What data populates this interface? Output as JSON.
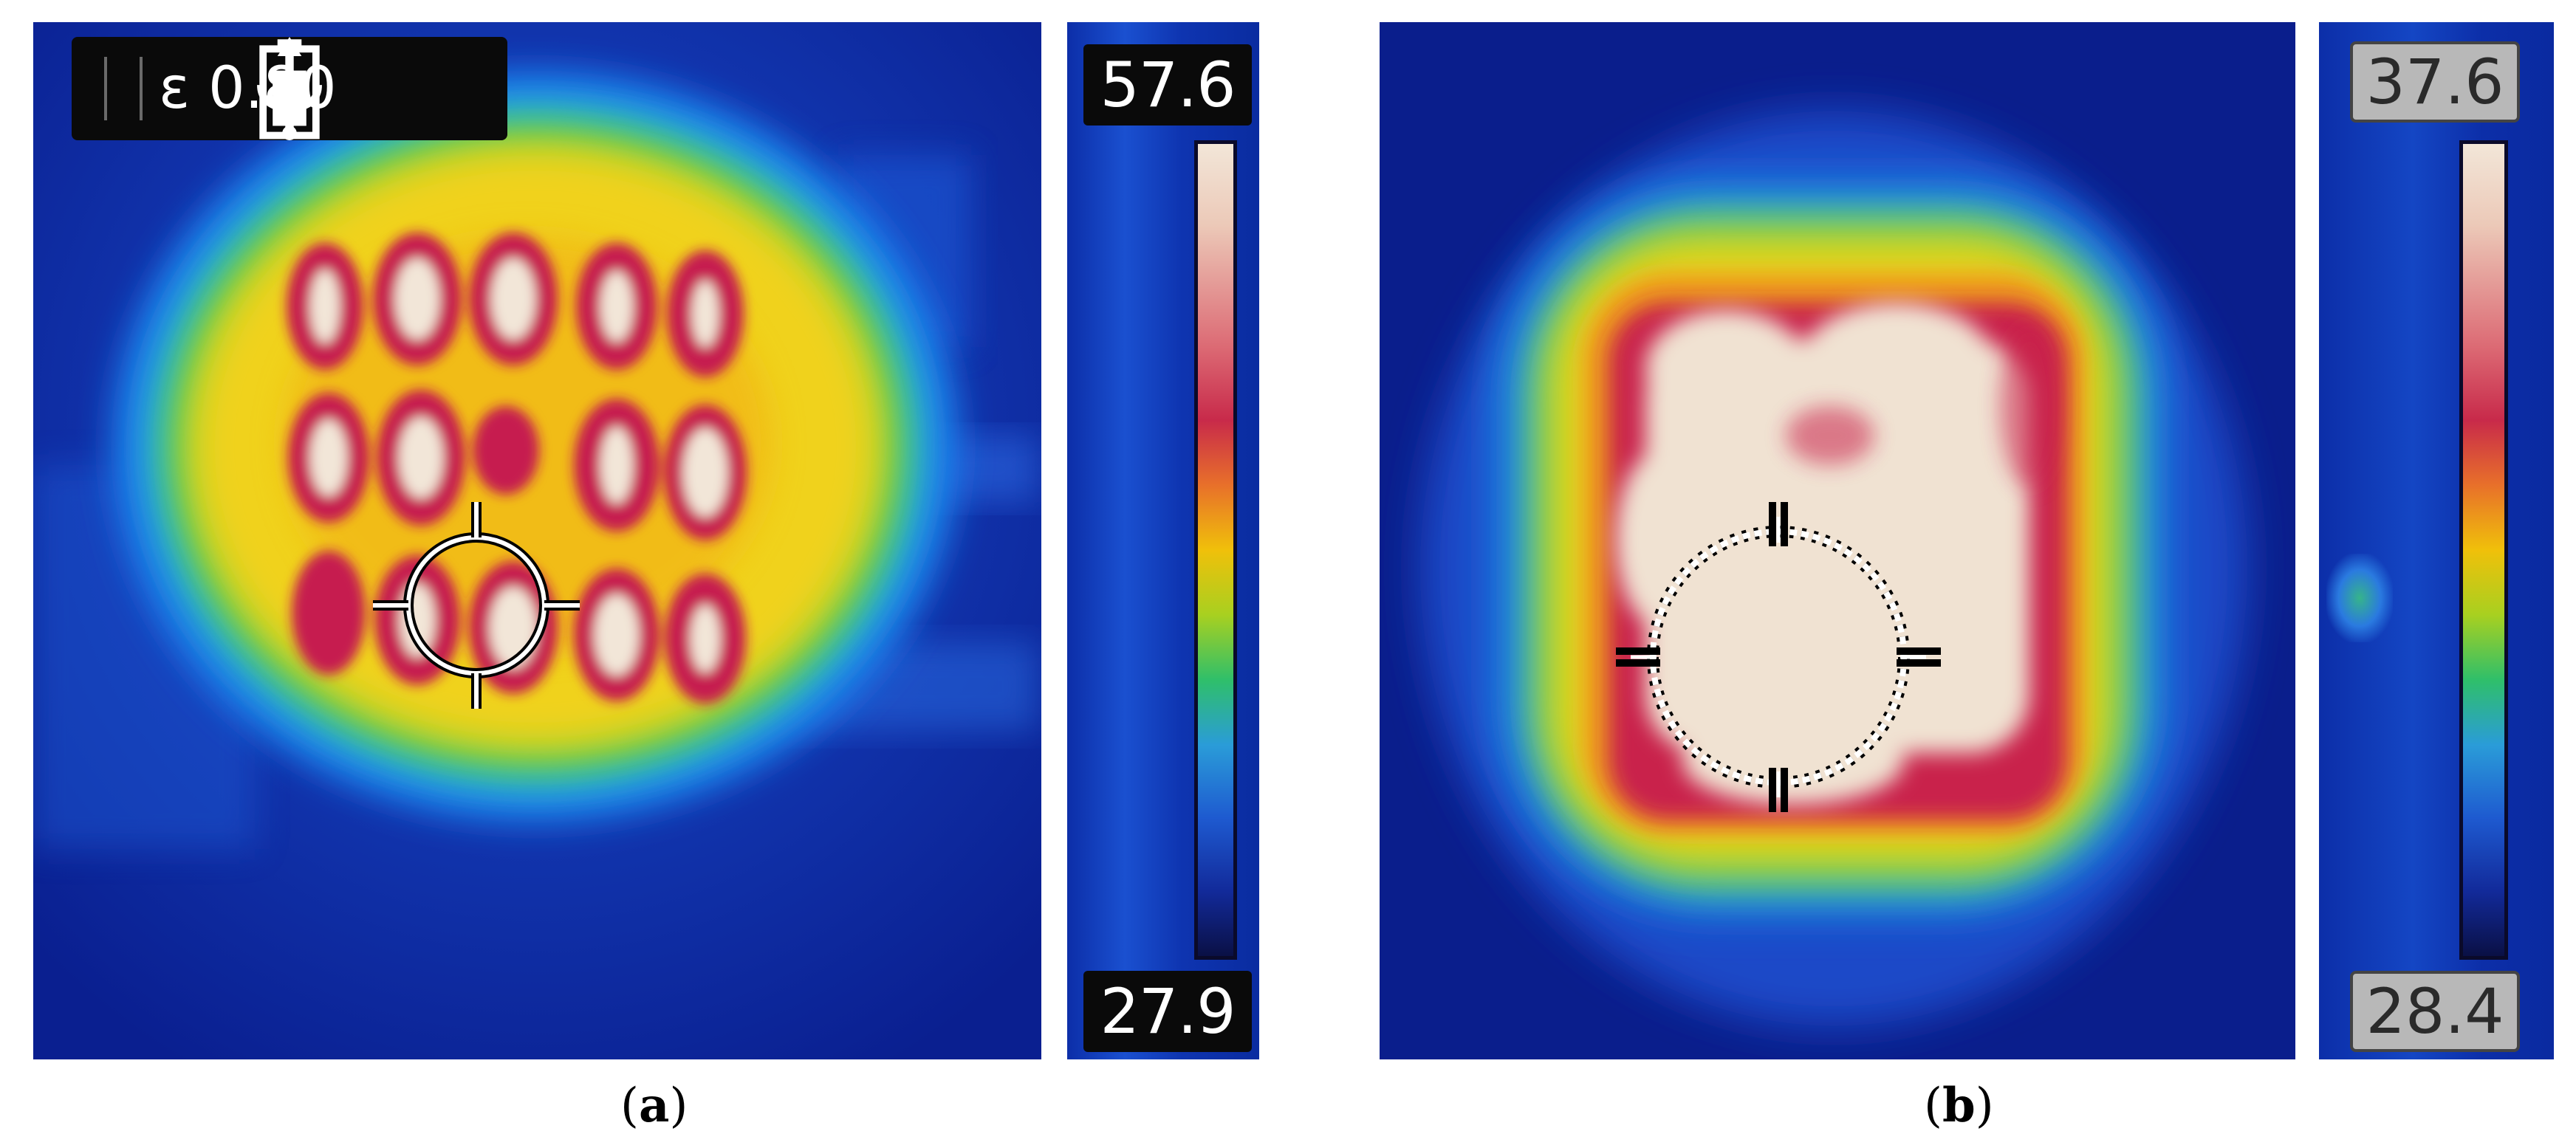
{
  "panels": {
    "a": {
      "caption_open": "(",
      "caption_letter": "a",
      "caption_close": ")",
      "emissivity": "ε 0.80",
      "scale_max": "57.6",
      "scale_min": "27.9",
      "icons": [
        "battery-icon",
        "usb-icon"
      ]
    },
    "b": {
      "caption_open": "(",
      "caption_letter": "b",
      "caption_close": ")",
      "scale_max": "37.6",
      "scale_min": "28.4"
    }
  },
  "colors": {
    "cold": "#0b2aa0",
    "warm": "#f0c00a",
    "hot": "#c82a4a",
    "hottest": "#f2e6d8"
  }
}
